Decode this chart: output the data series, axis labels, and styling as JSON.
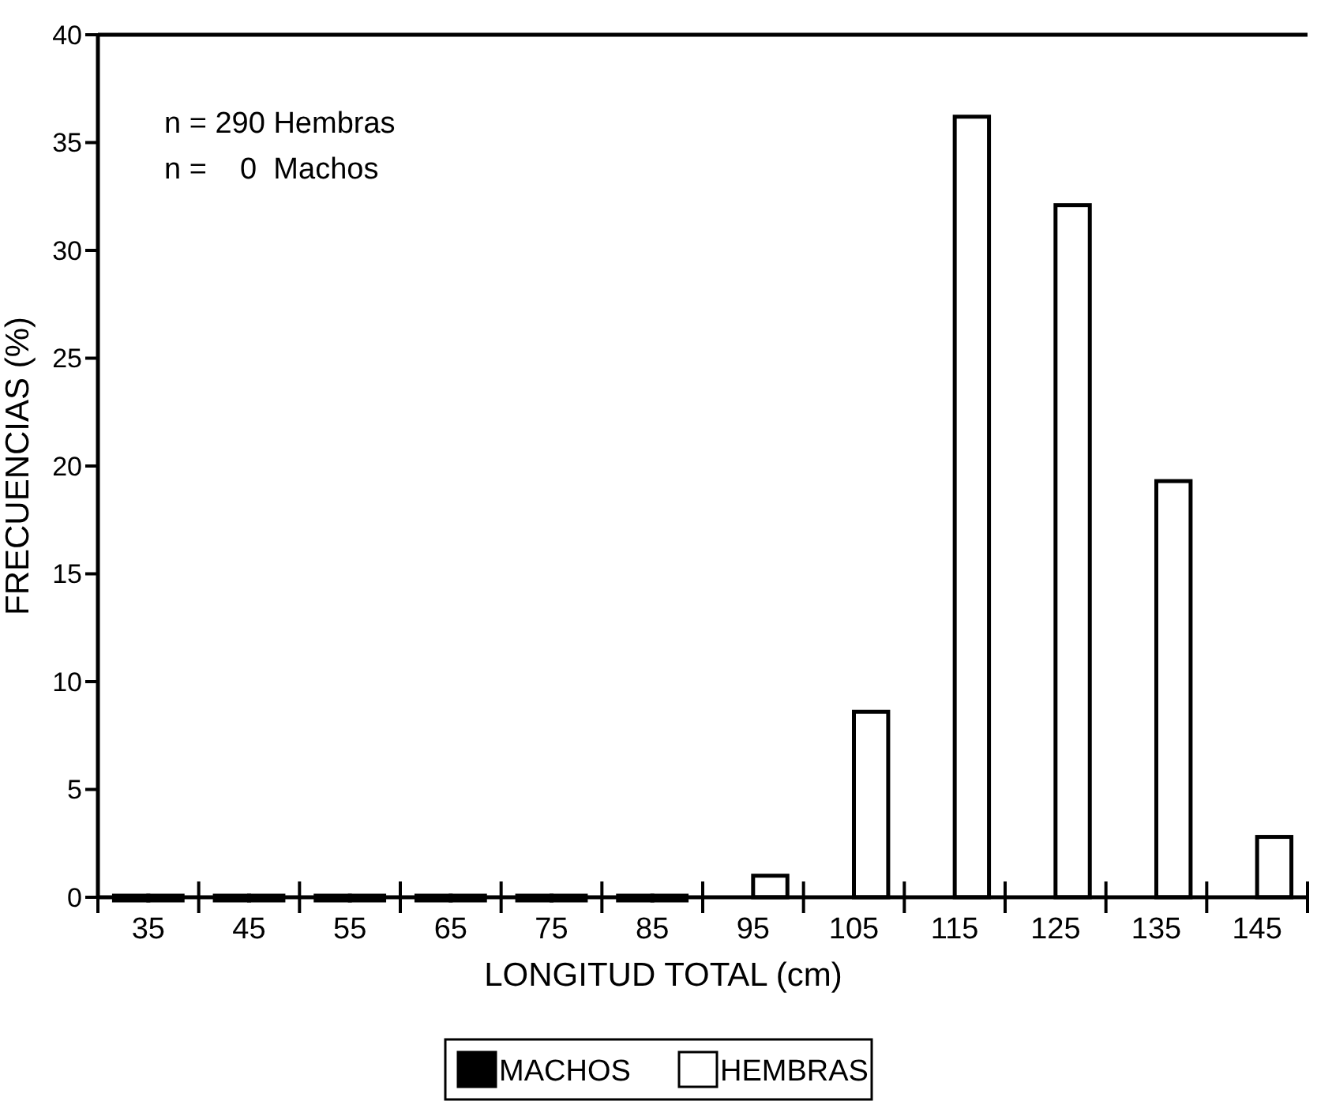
{
  "chart_data": {
    "type": "bar",
    "xlabel": "LONGITUD TOTAL (cm)",
    "ylabel": "FRECUENCIAS (%)",
    "categories": [
      "35",
      "45",
      "55",
      "65",
      "75",
      "85",
      "95",
      "105",
      "115",
      "125",
      "135",
      "145"
    ],
    "series": [
      {
        "name": "MACHOS",
        "color": "#000000",
        "values": [
          0,
          0,
          0,
          0,
          0,
          0,
          null,
          null,
          null,
          null,
          null,
          null
        ]
      },
      {
        "name": "HEMBRAS",
        "color": "#ffffff",
        "values": [
          0,
          0,
          0,
          0,
          0,
          0,
          1.0,
          8.6,
          36.2,
          32.1,
          19.3,
          2.8
        ]
      }
    ],
    "ylim": [
      0,
      40
    ],
    "yticks": [
      0,
      5,
      10,
      15,
      20,
      25,
      30,
      35,
      40
    ],
    "grid": false,
    "legend": "bottom",
    "annotations": [
      "n = 290 Hembras",
      "n =    0  Machos"
    ]
  }
}
